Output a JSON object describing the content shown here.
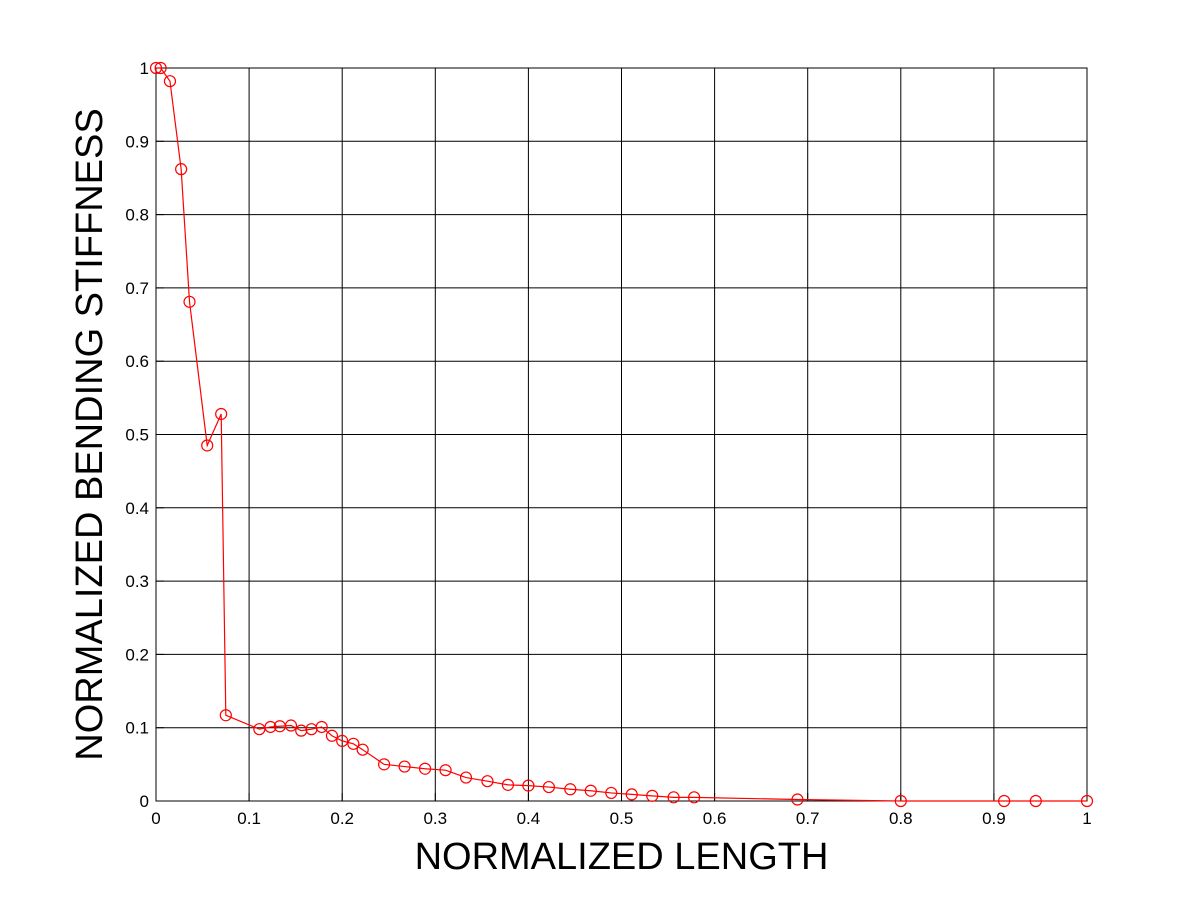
{
  "chart_data": {
    "type": "line",
    "title": "",
    "xlabel": "NORMALIZED LENGTH",
    "ylabel": "NORMALIZED BENDING STIFFNESS",
    "xlim": [
      0,
      1
    ],
    "ylim": [
      0,
      1
    ],
    "grid": true,
    "legend": "none",
    "x_ticks": [
      "0",
      "0.1",
      "0.2",
      "0.3",
      "0.4",
      "0.5",
      "0.6",
      "0.7",
      "0.8",
      "0.9",
      "1"
    ],
    "y_ticks": [
      "0",
      "0.1",
      "0.2",
      "0.3",
      "0.4",
      "0.5",
      "0.6",
      "0.7",
      "0.8",
      "0.9",
      "1"
    ],
    "series": [
      {
        "color": "#ff0000",
        "marker": "circle",
        "points": [
          {
            "x": 0.0,
            "y": 1.0
          },
          {
            "x": 0.005,
            "y": 1.0
          },
          {
            "x": 0.015,
            "y": 0.982
          },
          {
            "x": 0.027,
            "y": 0.862
          },
          {
            "x": 0.036,
            "y": 0.681
          },
          {
            "x": 0.055,
            "y": 0.485
          },
          {
            "x": 0.07,
            "y": 0.528
          },
          {
            "x": 0.075,
            "y": 0.117
          },
          {
            "x": 0.111,
            "y": 0.098
          },
          {
            "x": 0.123,
            "y": 0.101
          },
          {
            "x": 0.133,
            "y": 0.102
          },
          {
            "x": 0.145,
            "y": 0.103
          },
          {
            "x": 0.156,
            "y": 0.096
          },
          {
            "x": 0.167,
            "y": 0.098
          },
          {
            "x": 0.178,
            "y": 0.101
          },
          {
            "x": 0.189,
            "y": 0.089
          },
          {
            "x": 0.2,
            "y": 0.082
          },
          {
            "x": 0.212,
            "y": 0.078
          },
          {
            "x": 0.222,
            "y": 0.07
          },
          {
            "x": 0.245,
            "y": 0.05
          },
          {
            "x": 0.267,
            "y": 0.047
          },
          {
            "x": 0.289,
            "y": 0.044
          },
          {
            "x": 0.311,
            "y": 0.042
          },
          {
            "x": 0.333,
            "y": 0.032
          },
          {
            "x": 0.356,
            "y": 0.027
          },
          {
            "x": 0.378,
            "y": 0.022
          },
          {
            "x": 0.4,
            "y": 0.021
          },
          {
            "x": 0.422,
            "y": 0.019
          },
          {
            "x": 0.445,
            "y": 0.016
          },
          {
            "x": 0.467,
            "y": 0.014
          },
          {
            "x": 0.489,
            "y": 0.011
          },
          {
            "x": 0.511,
            "y": 0.009
          },
          {
            "x": 0.533,
            "y": 0.007
          },
          {
            "x": 0.556,
            "y": 0.005
          },
          {
            "x": 0.578,
            "y": 0.005
          },
          {
            "x": 0.689,
            "y": 0.002
          },
          {
            "x": 0.8,
            "y": 0.0
          },
          {
            "x": 0.911,
            "y": 0.0
          },
          {
            "x": 0.945,
            "y": 0.0
          },
          {
            "x": 1.0,
            "y": 0.0
          }
        ]
      }
    ]
  }
}
